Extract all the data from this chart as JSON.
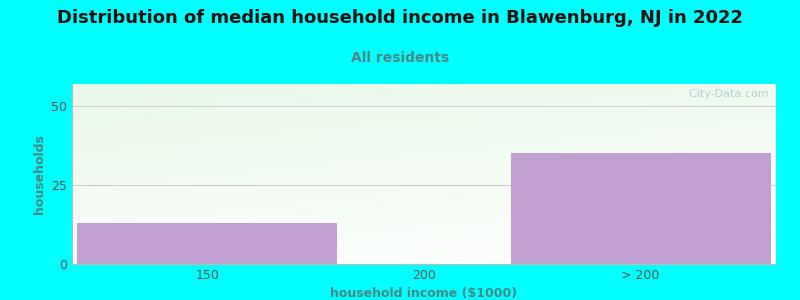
{
  "title": "Distribution of median household income in Blawenburg, NJ in 2022",
  "subtitle": "All residents",
  "xlabel": "household income ($1000)",
  "ylabel": "households",
  "background_color": "#00FFFF",
  "bar_color": "#c0a0d0",
  "categories": [
    "150",
    "200",
    "> 200"
  ],
  "values": [
    13,
    0,
    35
  ],
  "ylim": [
    0,
    57
  ],
  "yticks": [
    0,
    25,
    50
  ],
  "title_fontsize": 13,
  "subtitle_fontsize": 10,
  "label_fontsize": 9,
  "tick_fontsize": 9,
  "watermark_text": "  City-Data.com",
  "watermark_color": "#a8c8d0",
  "grid_color": "#cccccc",
  "title_color": "#111111",
  "subtitle_color": "#448888",
  "axis_label_color": "#448888",
  "tick_color": "#555555",
  "plot_bg_green": "#e8f8e8",
  "plot_bg_white": "#f8f8ff"
}
